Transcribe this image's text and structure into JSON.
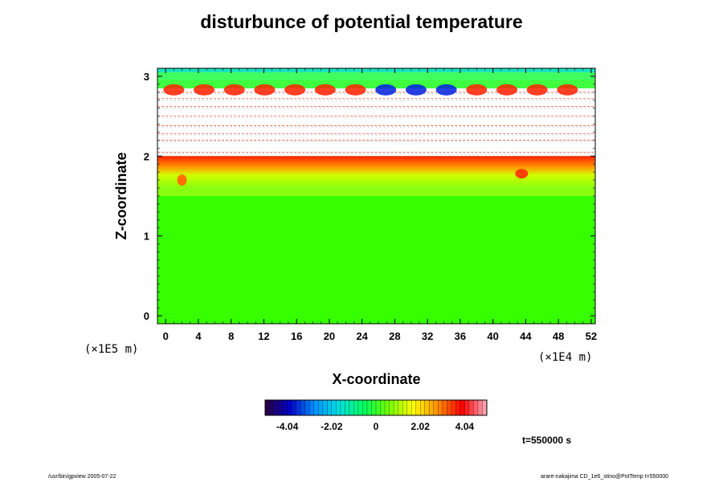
{
  "chart_data": {
    "type": "heatmap",
    "title": "disturbunce of potential temperature",
    "xlabel": "X-coordinate",
    "ylabel": "Z-coordinate",
    "x_scale_label": "(×1E4 m)",
    "y_scale_label": "(×1E5 m)",
    "xlim": [
      -1,
      52.5
    ],
    "ylim": [
      -0.1,
      3.1
    ],
    "x_ticks": [
      0,
      4,
      8,
      12,
      16,
      20,
      24,
      28,
      32,
      36,
      40,
      44,
      48,
      52
    ],
    "y_ticks": [
      0,
      1,
      2,
      3
    ],
    "colorbar": {
      "ticks": [
        -4.04,
        -2.02,
        0,
        2.02,
        4.04
      ],
      "tick_labels": [
        "-4.04",
        "-2.02",
        "0",
        "2.02",
        "4.04"
      ],
      "range": [
        -5.05,
        5.05
      ],
      "colormap": [
        "#2b0040",
        "#0000c8",
        "#0090ff",
        "#00e0e0",
        "#00ff60",
        "#70ff00",
        "#ffff00",
        "#ff9000",
        "#ff0000",
        "#ffb0c0"
      ]
    },
    "regions": [
      {
        "z_range": [
          0,
          1.5
        ],
        "value": 0.3,
        "color": "#36ff00"
      },
      {
        "z_range": [
          1.5,
          1.85
        ],
        "value": 1.1,
        "color": "#88ff10"
      },
      {
        "z_range": [
          1.85,
          2.0
        ],
        "value": 3.6,
        "color": "#ff4000"
      },
      {
        "z_range": [
          2.0,
          2.85
        ],
        "value": null,
        "color": "#ffffff"
      },
      {
        "z_range": [
          2.85,
          3.1
        ],
        "value": 0.0,
        "color": "#40ff40"
      }
    ]
  },
  "time_label": "t=550000 s",
  "footer_left": "/usr/bin/gpview 2005-07-22",
  "footer_right": "arare-nakajima CD_1e6_stino@PotTemp t=550000"
}
